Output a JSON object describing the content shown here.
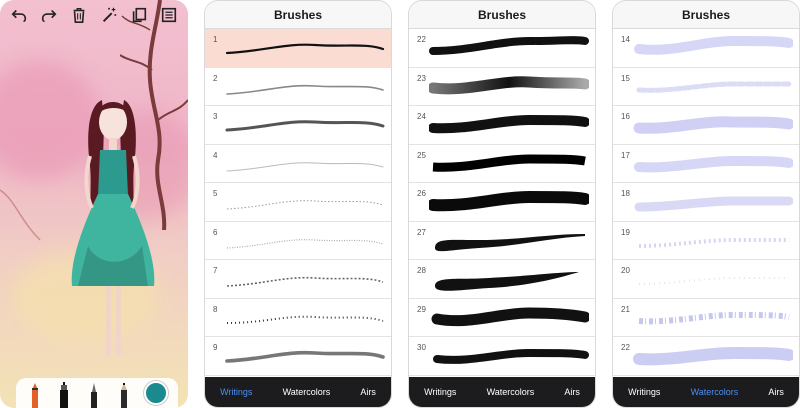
{
  "canvas_screen": {
    "toolbar": [
      {
        "name": "undo-icon"
      },
      {
        "name": "redo-icon"
      },
      {
        "name": "trash-icon"
      },
      {
        "name": "magic-wand-icon"
      },
      {
        "name": "duplicate-icon"
      },
      {
        "name": "layers-icon"
      }
    ],
    "tools": [
      {
        "name": "marker-tool"
      },
      {
        "name": "ink-pen-tool"
      },
      {
        "name": "brush-tool"
      },
      {
        "name": "pencil-tool"
      }
    ],
    "color_swatch": "#1b8a8e"
  },
  "panels": [
    {
      "title": "Brushes",
      "selected": "1",
      "active_tab": "Writings",
      "tabs": [
        "Writings",
        "Watercolors",
        "Airs"
      ],
      "brushes": [
        "1",
        "2",
        "3",
        "4",
        "5",
        "6",
        "7",
        "8",
        "9"
      ]
    },
    {
      "title": "Brushes",
      "active_tab": "",
      "tabs": [
        "Writings",
        "Watercolors",
        "Airs"
      ],
      "brushes": [
        "22",
        "23",
        "24",
        "25",
        "26",
        "27",
        "28",
        "29",
        "30"
      ]
    },
    {
      "title": "Brushes",
      "active_tab": "Watercolors",
      "tabs": [
        "Writings",
        "Watercolors",
        "Airs"
      ],
      "brushes": [
        "14",
        "15",
        "16",
        "17",
        "18",
        "19",
        "20",
        "21",
        "22"
      ]
    }
  ],
  "colors": {
    "selected_row": "#fbdcd3",
    "active_tab": "#4a8ff4",
    "tab_bar": "#1c1c1e",
    "watercolor_stroke": "#cfd0f4"
  }
}
